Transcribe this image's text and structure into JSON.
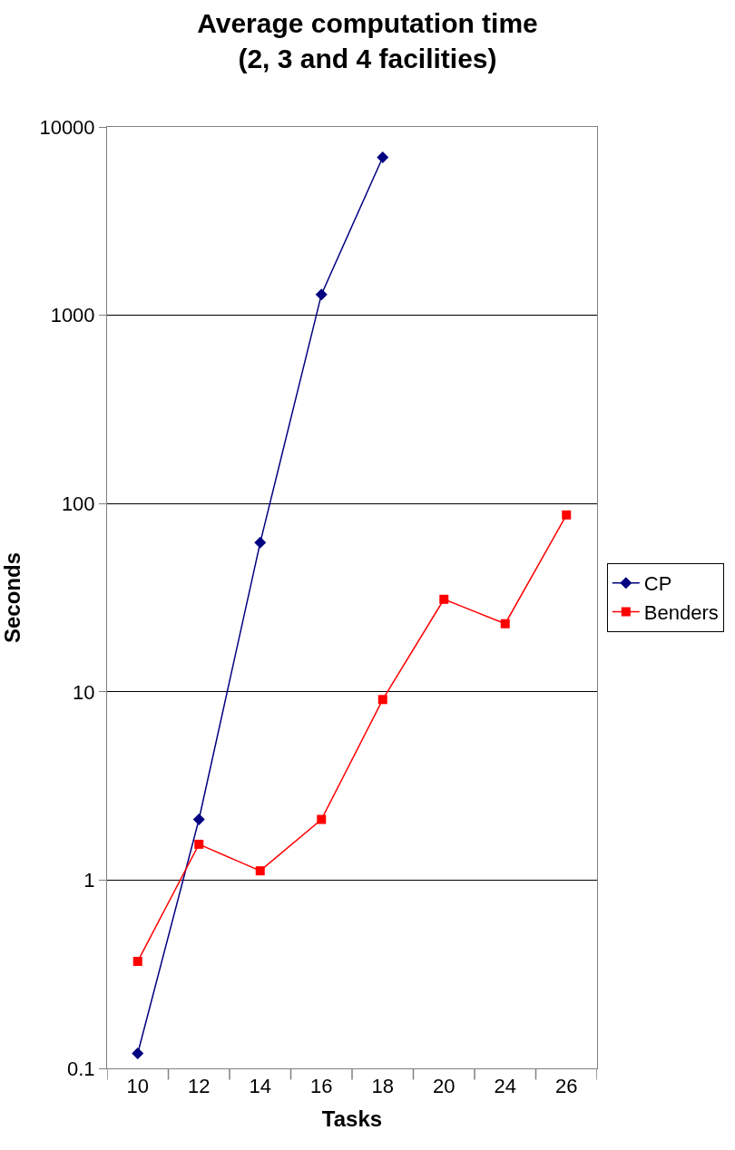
{
  "chart_data": {
    "type": "line",
    "title": "Average computation time\n(2, 3 and 4 facilities)",
    "xlabel": "Tasks",
    "ylabel": "Seconds",
    "categories": [
      "10",
      "12",
      "14",
      "16",
      "18",
      "20",
      "24",
      "26"
    ],
    "series": [
      {
        "name": "CP",
        "color": "#000080",
        "marker": "diamond",
        "values": [
          0.12,
          2.1,
          62,
          1290,
          6900,
          null,
          null,
          null
        ]
      },
      {
        "name": "Benders",
        "color": "#ff0000",
        "marker": "square",
        "values": [
          0.37,
          1.55,
          1.12,
          2.1,
          9.1,
          31,
          23,
          87
        ]
      }
    ],
    "log": "y",
    "ylim": [
      0.1,
      10000
    ],
    "yticks": [
      0.1,
      1,
      10,
      100,
      1000,
      10000
    ],
    "grid": "y",
    "legend": "right",
    "line_style": "solid"
  }
}
